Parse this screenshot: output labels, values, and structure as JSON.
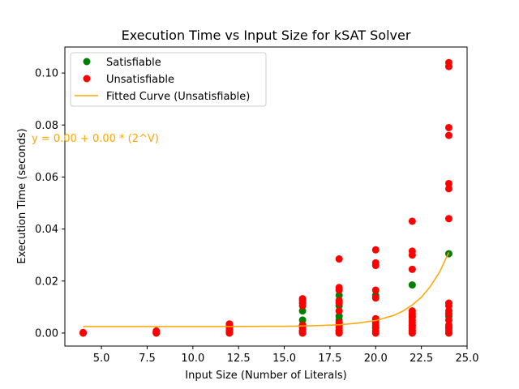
{
  "chart_data": {
    "type": "scatter",
    "title": "Execution Time vs Input Size for kSAT Solver",
    "xlabel": "Input Size (Number of Literals)",
    "ylabel": "Execution Time (seconds)",
    "xlim": [
      3.0,
      25.0
    ],
    "ylim": [
      -0.005,
      0.11
    ],
    "xticks": [
      5.0,
      7.5,
      10.0,
      12.5,
      15.0,
      17.5,
      20.0,
      22.5,
      25.0
    ],
    "xtick_labels": [
      "5.0",
      "7.5",
      "10.0",
      "12.5",
      "15.0",
      "17.5",
      "20.0",
      "22.5",
      "25.0"
    ],
    "yticks": [
      0.0,
      0.02,
      0.04,
      0.06,
      0.08,
      0.1
    ],
    "ytick_labels": [
      "0.00",
      "0.02",
      "0.04",
      "0.06",
      "0.08",
      "0.10"
    ],
    "grid": false,
    "legend_placement": "upper left",
    "series": [
      {
        "name": "Satisfiable",
        "kind": "scatter",
        "color": "#008000",
        "points": [
          [
            4,
            0.0
          ],
          [
            8,
            0.0
          ],
          [
            12,
            0.0
          ],
          [
            12,
            0.001
          ],
          [
            16,
            0.0
          ],
          [
            16,
            0.001
          ],
          [
            16,
            0.003
          ],
          [
            16,
            0.005
          ],
          [
            16,
            0.0085
          ],
          [
            18,
            0.0
          ],
          [
            18,
            0.001
          ],
          [
            18,
            0.003
          ],
          [
            18,
            0.005
          ],
          [
            18,
            0.0065
          ],
          [
            18,
            0.0105
          ],
          [
            18,
            0.0145
          ],
          [
            20,
            0.0
          ],
          [
            20,
            0.002
          ],
          [
            20,
            0.004
          ],
          [
            20,
            0.0145
          ],
          [
            22,
            0.0
          ],
          [
            22,
            0.001
          ],
          [
            22,
            0.003
          ],
          [
            22,
            0.006
          ],
          [
            22,
            0.0185
          ],
          [
            24,
            0.0
          ],
          [
            24,
            0.002
          ],
          [
            24,
            0.0065
          ],
          [
            24,
            0.0305
          ]
        ]
      },
      {
        "name": "Unsatisfiable",
        "kind": "scatter",
        "color": "#ff0000",
        "points": [
          [
            4,
            0.0
          ],
          [
            4,
            0.0002
          ],
          [
            8,
            0.0
          ],
          [
            8,
            0.0003
          ],
          [
            8,
            0.0005
          ],
          [
            8,
            0.0008
          ],
          [
            12,
            0.0
          ],
          [
            12,
            0.0005
          ],
          [
            12,
            0.0012
          ],
          [
            12,
            0.002
          ],
          [
            12,
            0.003
          ],
          [
            12,
            0.0035
          ],
          [
            16,
            0.0
          ],
          [
            16,
            0.0005
          ],
          [
            16,
            0.001
          ],
          [
            16,
            0.002
          ],
          [
            16,
            0.003
          ],
          [
            16,
            0.0105
          ],
          [
            16,
            0.0115
          ],
          [
            16,
            0.0125
          ],
          [
            16,
            0.0132
          ],
          [
            18,
            0.0
          ],
          [
            18,
            0.0005
          ],
          [
            18,
            0.001
          ],
          [
            18,
            0.002
          ],
          [
            18,
            0.003
          ],
          [
            18,
            0.004
          ],
          [
            18,
            0.0085
          ],
          [
            18,
            0.0115
          ],
          [
            18,
            0.0125
          ],
          [
            18,
            0.0165
          ],
          [
            18,
            0.0175
          ],
          [
            18,
            0.0285
          ],
          [
            20,
            0.0
          ],
          [
            20,
            0.0005
          ],
          [
            20,
            0.001
          ],
          [
            20,
            0.002
          ],
          [
            20,
            0.003
          ],
          [
            20,
            0.005
          ],
          [
            20,
            0.0055
          ],
          [
            20,
            0.0135
          ],
          [
            20,
            0.0165
          ],
          [
            20,
            0.026
          ],
          [
            20,
            0.027
          ],
          [
            20,
            0.032
          ],
          [
            22,
            0.0
          ],
          [
            22,
            0.001
          ],
          [
            22,
            0.002
          ],
          [
            22,
            0.003
          ],
          [
            22,
            0.004
          ],
          [
            22,
            0.005
          ],
          [
            22,
            0.0065
          ],
          [
            22,
            0.0075
          ],
          [
            22,
            0.0085
          ],
          [
            22,
            0.0245
          ],
          [
            22,
            0.03
          ],
          [
            22,
            0.0315
          ],
          [
            22,
            0.043
          ],
          [
            24,
            0.0
          ],
          [
            24,
            0.001
          ],
          [
            24,
            0.002
          ],
          [
            24,
            0.003
          ],
          [
            24,
            0.005
          ],
          [
            24,
            0.0075
          ],
          [
            24,
            0.0085
          ],
          [
            24,
            0.0105
          ],
          [
            24,
            0.0115
          ],
          [
            24,
            0.044
          ],
          [
            24,
            0.0555
          ],
          [
            24,
            0.0575
          ],
          [
            24,
            0.076
          ],
          [
            24,
            0.079
          ],
          [
            24,
            0.1025
          ],
          [
            24,
            0.104
          ]
        ]
      },
      {
        "name": "Fitted Curve (Unsatisfiable)",
        "kind": "line",
        "color": "#ffa500",
        "x": [
          4,
          6,
          8,
          10,
          12,
          14,
          15,
          16,
          17,
          18,
          19,
          20,
          21,
          21.5,
          22,
          22.5,
          23,
          23.5,
          24
        ],
        "y": [
          0.0025,
          0.0025,
          0.0025,
          0.0025,
          0.0025,
          0.0026,
          0.0026,
          0.0027,
          0.0029,
          0.0032,
          0.0038,
          0.0048,
          0.0068,
          0.0085,
          0.0108,
          0.0138,
          0.018,
          0.0235,
          0.031
        ]
      }
    ],
    "annotation": {
      "text": "y = 0.00 + 0.00 * (2^V)",
      "color": "#ffa500"
    }
  }
}
